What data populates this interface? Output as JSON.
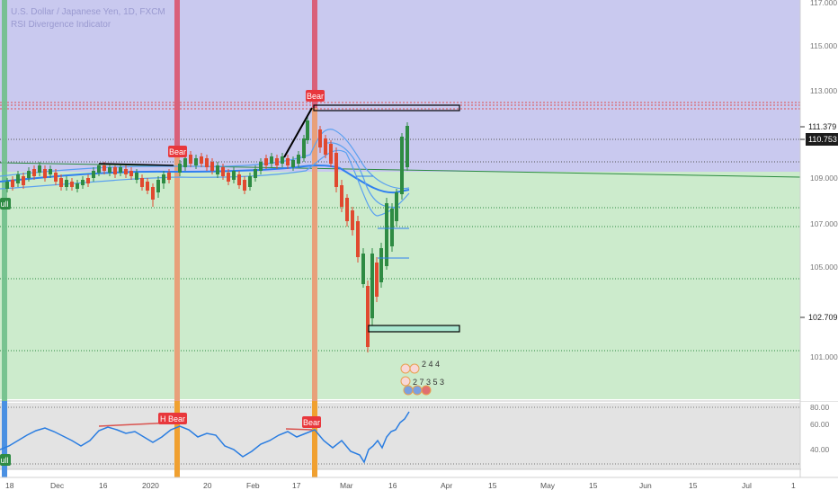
{
  "header": {
    "symbol_line": "U.S. Dollar / Japanese Yen, 1D, FXCM",
    "indicator_line": "RSI Divergence Indicator"
  },
  "price_axis": {
    "ticks": [
      "117.000",
      "115.000",
      "113.000",
      "109.000",
      "107.000",
      "105.000",
      "101.000"
    ],
    "tags": [
      {
        "value": "111.379",
        "style": "light"
      },
      {
        "value": "110.753",
        "style": "dark"
      },
      {
        "value": "102.709",
        "style": "light"
      }
    ]
  },
  "rsi_axis": {
    "ticks": [
      "80.00",
      "60.00",
      "40.00"
    ]
  },
  "time_axis": {
    "labels": [
      "18",
      "Dec",
      "16",
      "2020",
      "20",
      "Feb",
      "17",
      "Mar",
      "16",
      "Apr",
      "15",
      "May",
      "15",
      "Jun",
      "15",
      "Jul",
      "1"
    ]
  },
  "chart_labels": {
    "bear_top": "Bear",
    "bear_left": "Bear",
    "bull_left": "ull",
    "rsi_h_bear": "H Bear",
    "rsi_bear": "Bear",
    "rsi_bull": "ull"
  },
  "calendar_badges": {
    "row1": "2 4 4",
    "row2": "2 7 3 5 3"
  },
  "colors": {
    "upper_zone": "#c9c9ef",
    "lower_zone": "#ccebcc",
    "rsi_bg": "#e3e3e3",
    "bull_candle": "#2e8b43",
    "bear_candle": "#e0492f",
    "moving_average": "#2f7ff0",
    "rsi_line": "#2a7de1",
    "vertical_red": "#d9607a",
    "vertical_orange": "#f0a030",
    "label_red": "#e8373c"
  }
}
